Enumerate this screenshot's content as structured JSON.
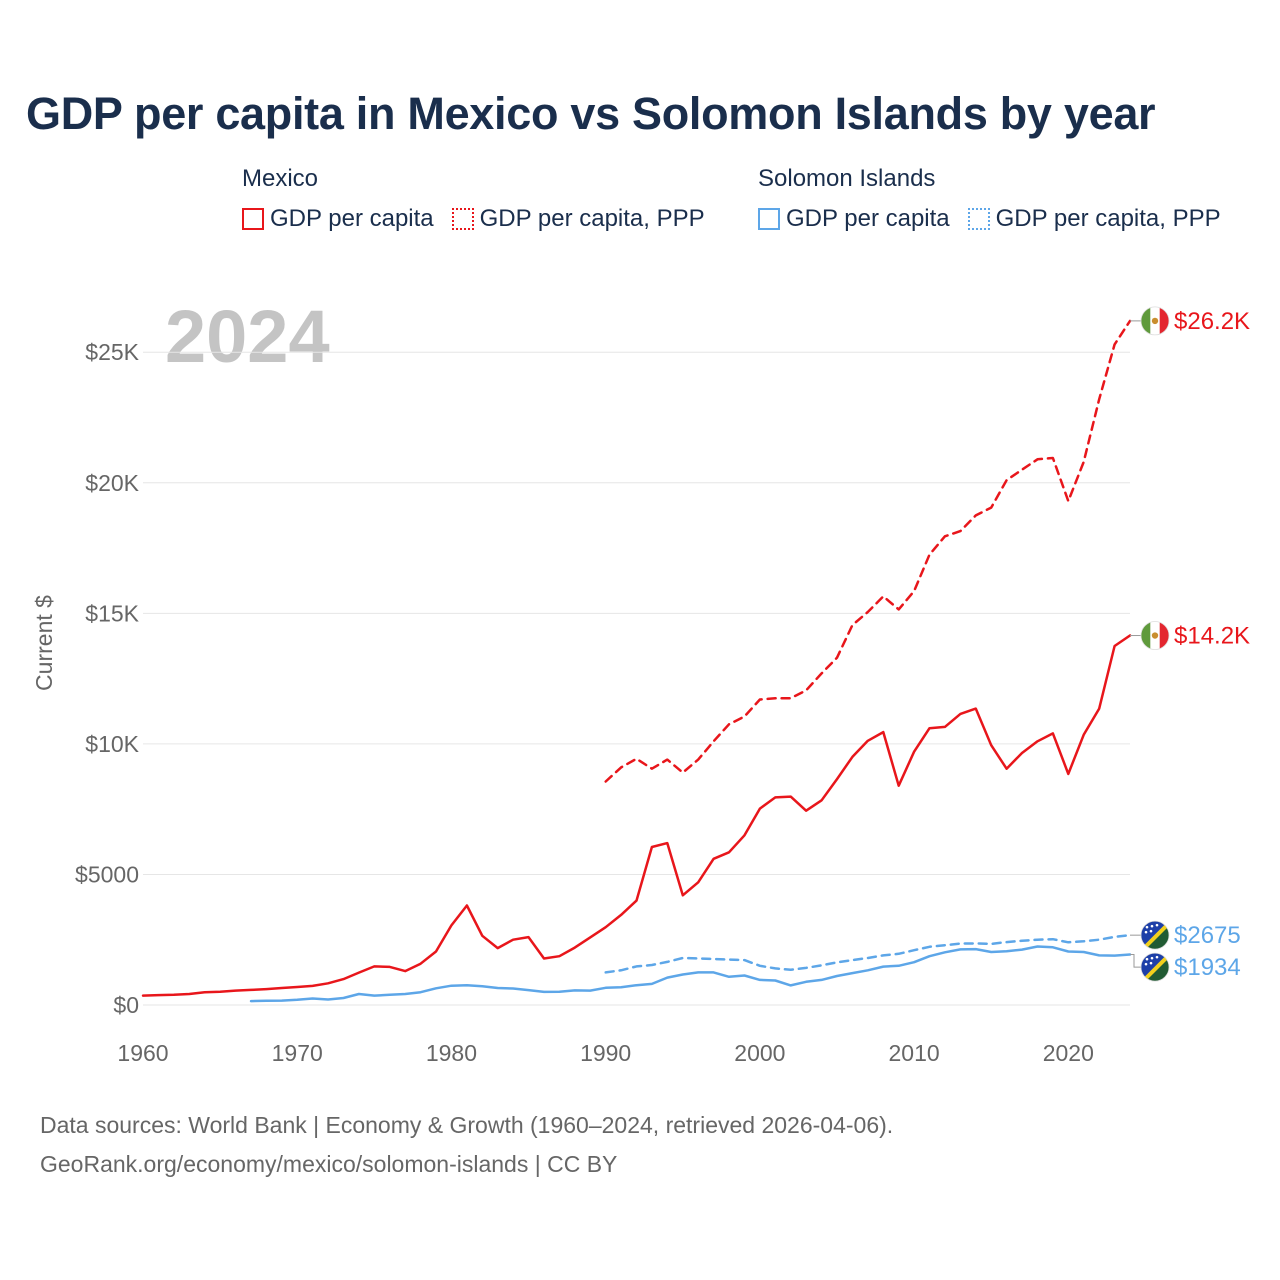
{
  "title": "GDP per capita in Mexico vs Solomon Islands by year",
  "legend": {
    "groups": [
      {
        "name": "Mexico",
        "items": [
          {
            "label": "GDP per capita",
            "style": "solid",
            "color": "#e8161b"
          },
          {
            "label": "GDP per capita, PPP",
            "style": "dotted",
            "color": "#e8161b"
          }
        ]
      },
      {
        "name": "Solomon Islands",
        "items": [
          {
            "label": "GDP per capita",
            "style": "solid",
            "color": "#5da6e8"
          },
          {
            "label": "GDP per capita, PPP",
            "style": "dotted",
            "color": "#5da6e8"
          }
        ]
      }
    ]
  },
  "year_label": "2024",
  "source": {
    "line1": "Data sources: World Bank | Economy & Growth (1960–2024, retrieved 2026-04-06).",
    "line2": "GeoRank.org/economy/mexico/solomon-islands | CC BY"
  },
  "chart_data": {
    "type": "line",
    "title": "GDP per capita in Mexico vs Solomon Islands by year",
    "xlabel": "",
    "ylabel": "Current $",
    "xlim": [
      1960,
      2024
    ],
    "ylim": [
      0,
      27000
    ],
    "x_ticks": [
      1960,
      1970,
      1980,
      1990,
      2000,
      2010,
      2020
    ],
    "x_tick_labels": [
      "1960",
      "1970",
      "1980",
      "1990",
      "2000",
      "2010",
      "2020"
    ],
    "y_ticks": [
      0,
      5000,
      10000,
      15000,
      20000,
      25000
    ],
    "y_tick_labels": [
      "$0",
      "$5000",
      "$10K",
      "$15K",
      "$20K",
      "$25K"
    ],
    "grid": true,
    "series": [
      {
        "name": "Mexico GDP per capita",
        "color": "#e8161b",
        "dash": "solid",
        "end_label": "$14.2K",
        "flag": "mexico",
        "x": [
          1960,
          1961,
          1962,
          1963,
          1964,
          1965,
          1966,
          1967,
          1968,
          1969,
          1970,
          1971,
          1972,
          1973,
          1974,
          1975,
          1976,
          1977,
          1978,
          1979,
          1980,
          1981,
          1982,
          1983,
          1984,
          1985,
          1986,
          1987,
          1988,
          1989,
          1990,
          1991,
          1992,
          1993,
          1994,
          1995,
          1996,
          1997,
          1998,
          1999,
          2000,
          2001,
          2002,
          2003,
          2004,
          2005,
          2006,
          2007,
          2008,
          2009,
          2010,
          2011,
          2012,
          2013,
          2014,
          2015,
          2016,
          2017,
          2018,
          2019,
          2020,
          2021,
          2022,
          2023,
          2024
        ],
        "y": [
          360,
          380,
          390,
          420,
          490,
          510,
          550,
          580,
          610,
          650,
          690,
          730,
          830,
          990,
          1240,
          1480,
          1460,
          1300,
          1580,
          2050,
          3050,
          3810,
          2650,
          2180,
          2500,
          2600,
          1780,
          1870,
          2200,
          2590,
          2980,
          3450,
          4000,
          6050,
          6200,
          4200,
          4700,
          5600,
          5850,
          6500,
          7520,
          7950,
          7980,
          7440,
          7840,
          8650,
          9500,
          10120,
          10450,
          8400,
          9700,
          10600,
          10650,
          11150,
          11350,
          9950,
          9050,
          9650,
          10100,
          10400,
          8850,
          10350,
          11350,
          13750,
          14150
        ]
      },
      {
        "name": "Mexico GDP per capita, PPP",
        "color": "#e8161b",
        "dash": "dashed",
        "end_label": "$26.2K",
        "flag": "mexico",
        "x": [
          1990,
          1991,
          1992,
          1993,
          1994,
          1995,
          1996,
          1997,
          1998,
          1999,
          2000,
          2001,
          2002,
          2003,
          2004,
          2005,
          2006,
          2007,
          2008,
          2009,
          2010,
          2011,
          2012,
          2013,
          2014,
          2015,
          2016,
          2017,
          2018,
          2019,
          2020,
          2021,
          2022,
          2023,
          2024
        ],
        "y": [
          8560,
          9100,
          9430,
          9050,
          9400,
          8900,
          9400,
          10100,
          10750,
          11050,
          11700,
          11750,
          11750,
          12050,
          12700,
          13300,
          14550,
          15050,
          15650,
          15150,
          15850,
          17250,
          17950,
          18150,
          18750,
          19050,
          20100,
          20500,
          20900,
          20950,
          19300,
          20800,
          23200,
          25300,
          26200
        ]
      },
      {
        "name": "Solomon Islands GDP per capita",
        "color": "#5da6e8",
        "dash": "solid",
        "end_label": "$1934",
        "flag": "solomon",
        "x": [
          1967,
          1968,
          1969,
          1970,
          1971,
          1972,
          1973,
          1974,
          1975,
          1976,
          1977,
          1978,
          1979,
          1980,
          1981,
          1982,
          1983,
          1984,
          1985,
          1986,
          1987,
          1988,
          1989,
          1990,
          1991,
          1992,
          1993,
          1994,
          1995,
          1996,
          1997,
          1998,
          1999,
          2000,
          2001,
          2002,
          2003,
          2004,
          2005,
          2006,
          2007,
          2008,
          2009,
          2010,
          2011,
          2012,
          2013,
          2014,
          2015,
          2016,
          2017,
          2018,
          2019,
          2020,
          2021,
          2022,
          2023,
          2024
        ],
        "y": [
          150,
          160,
          170,
          200,
          250,
          210,
          270,
          420,
          360,
          390,
          420,
          490,
          640,
          740,
          760,
          720,
          650,
          630,
          570,
          500,
          510,
          560,
          550,
          660,
          680,
          760,
          810,
          1050,
          1170,
          1250,
          1250,
          1080,
          1130,
          960,
          940,
          750,
          890,
          960,
          1110,
          1220,
          1330,
          1470,
          1500,
          1640,
          1870,
          2020,
          2130,
          2140,
          2030,
          2060,
          2120,
          2240,
          2210,
          2050,
          2030,
          1900,
          1890,
          1934
        ]
      },
      {
        "name": "Solomon Islands GDP per capita, PPP",
        "color": "#5da6e8",
        "dash": "dashed",
        "end_label": "$2675",
        "flag": "solomon",
        "x": [
          1990,
          1991,
          1992,
          1993,
          1994,
          1995,
          1996,
          1997,
          1998,
          1999,
          2000,
          2001,
          2002,
          2003,
          2004,
          2005,
          2006,
          2007,
          2008,
          2009,
          2010,
          2011,
          2012,
          2013,
          2014,
          2015,
          2016,
          2017,
          2018,
          2019,
          2020,
          2021,
          2022,
          2023,
          2024
        ],
        "y": [
          1250,
          1330,
          1480,
          1530,
          1650,
          1800,
          1780,
          1760,
          1740,
          1720,
          1500,
          1400,
          1350,
          1420,
          1520,
          1630,
          1720,
          1800,
          1900,
          1960,
          2100,
          2230,
          2290,
          2350,
          2360,
          2340,
          2410,
          2460,
          2500,
          2520,
          2400,
          2440,
          2500,
          2610,
          2675
        ]
      }
    ]
  }
}
